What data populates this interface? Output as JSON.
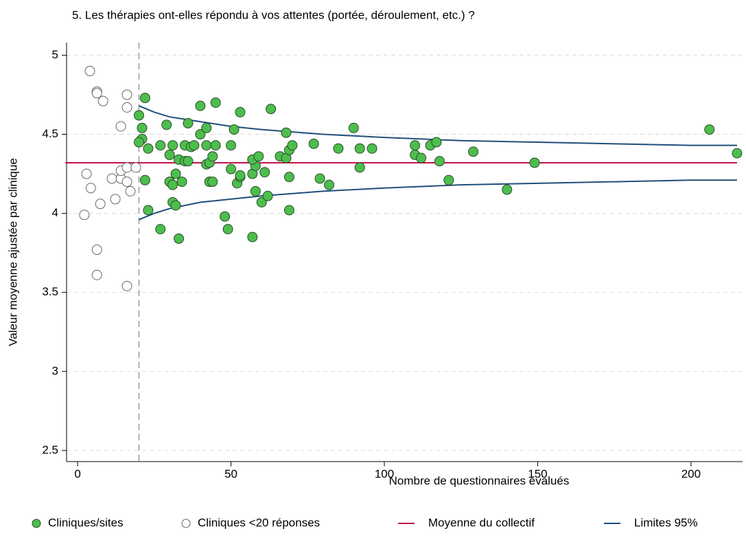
{
  "chart_data": {
    "type": "scatter",
    "title": "5. Les thérapies ont-elles répondu à vos attentes (portée, déroulement, etc.) ?",
    "x_label": "Nombre de questionnaires évalués",
    "y_label": "Valeur moyenne ajustée par clinique",
    "xlim": [
      -3.6,
      216.8
    ],
    "ylim": [
      2.43,
      5.08
    ],
    "xticks": [
      0,
      50,
      100,
      150,
      200
    ],
    "yticks": [
      2.5,
      3,
      3.5,
      4,
      4.5,
      5
    ],
    "grid": true,
    "vline": 20,
    "legend": "bottom",
    "series": [
      {
        "name": "Cliniques/sites",
        "kind": "points",
        "color": "#4dbe4d",
        "x": [
          22,
          20,
          21,
          21,
          20,
          23,
          22,
          23,
          27,
          29,
          30,
          31,
          30,
          31,
          32,
          33,
          34,
          31,
          32,
          27,
          33,
          35,
          36,
          35,
          36,
          37,
          38,
          40,
          40,
          42,
          42,
          42,
          43,
          44,
          43,
          44,
          45,
          45,
          50,
          51,
          50,
          52,
          53,
          53,
          53,
          48,
          49,
          57,
          57,
          58,
          57,
          59,
          58,
          61,
          60,
          62,
          63,
          66,
          68,
          68,
          69,
          70,
          69,
          69,
          77,
          79,
          82,
          85,
          90,
          92,
          92,
          96,
          110,
          110,
          112,
          115,
          117,
          118,
          121,
          129,
          140,
          149,
          206,
          215
        ],
        "values": [
          4.73,
          4.62,
          4.54,
          4.47,
          4.45,
          4.41,
          4.21,
          4.02,
          4.43,
          4.56,
          4.37,
          4.43,
          4.2,
          4.18,
          4.25,
          4.34,
          4.2,
          4.07,
          4.05,
          3.9,
          3.84,
          4.43,
          4.57,
          4.33,
          4.33,
          4.42,
          4.43,
          4.5,
          4.68,
          4.54,
          4.43,
          4.31,
          4.32,
          4.36,
          4.2,
          4.2,
          4.43,
          4.7,
          4.43,
          4.53,
          4.28,
          4.19,
          4.23,
          4.64,
          4.24,
          3.98,
          3.9,
          3.85,
          4.25,
          4.3,
          4.34,
          4.36,
          4.14,
          4.26,
          4.07,
          4.11,
          4.66,
          4.36,
          4.35,
          4.51,
          4.4,
          4.43,
          4.23,
          4.02,
          4.44,
          4.22,
          4.18,
          4.41,
          4.54,
          4.41,
          4.29,
          4.41,
          4.43,
          4.37,
          4.35,
          4.43,
          4.45,
          4.33,
          4.21,
          4.39,
          4.15,
          4.32,
          4.53,
          4.38
        ]
      },
      {
        "name": "Cliniques <20 réponses",
        "kind": "points",
        "color": "#ffffff",
        "x": [
          4,
          6.3,
          6.3,
          8.3,
          16.1,
          16.1,
          14.1,
          2.9,
          7.4,
          4.3,
          11.2,
          14.1,
          14.1,
          16.1,
          19,
          16.1,
          17.2,
          12.3,
          2.2,
          6.3,
          6.3,
          16.1
        ],
        "values": [
          4.9,
          4.77,
          4.76,
          4.71,
          4.75,
          4.67,
          4.55,
          4.25,
          4.06,
          4.16,
          4.22,
          4.22,
          4.27,
          4.29,
          4.29,
          4.2,
          4.14,
          4.09,
          3.99,
          3.77,
          3.61,
          3.54
        ]
      },
      {
        "name": "Moyenne du collectif",
        "kind": "line",
        "color": "#c0134a",
        "x": [
          -4,
          215
        ],
        "values": [
          4.32,
          4.32
        ]
      },
      {
        "name": "Limites 95%",
        "kind": "band",
        "color": "#1f4e79",
        "x": [
          20,
          25,
          30,
          40,
          50,
          60,
          80,
          100,
          125,
          150,
          175,
          200,
          215
        ],
        "upper": [
          4.68,
          4.64,
          4.61,
          4.58,
          4.55,
          4.53,
          4.5,
          4.48,
          4.46,
          4.45,
          4.44,
          4.43,
          4.43
        ],
        "lower": [
          3.96,
          4.0,
          4.03,
          4.07,
          4.09,
          4.11,
          4.14,
          4.16,
          4.18,
          4.19,
          4.2,
          4.21,
          4.21
        ]
      }
    ]
  }
}
